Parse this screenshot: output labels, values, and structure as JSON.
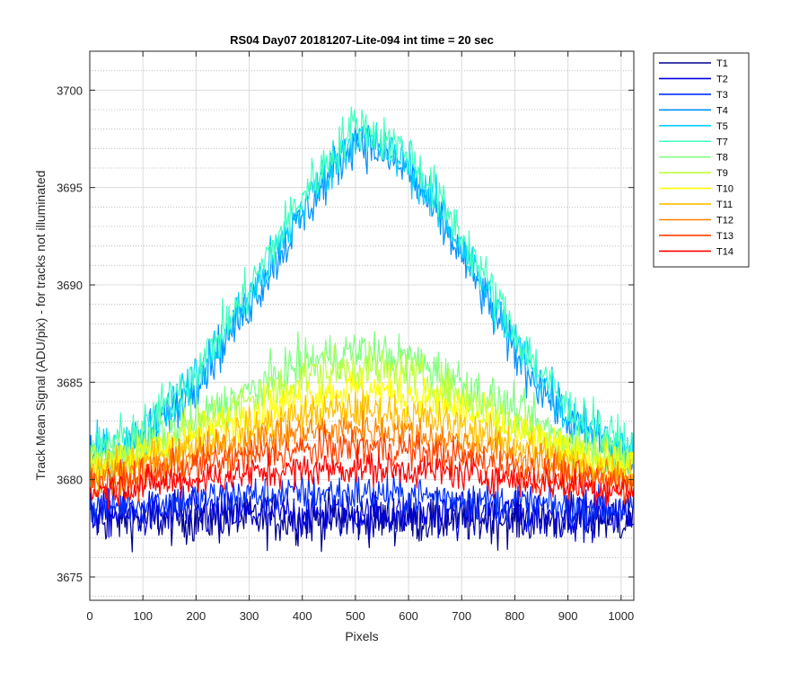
{
  "chart_data": {
    "type": "line",
    "title": "RS04 Day07 20181207-Lite-094 int time = 20 sec",
    "xlabel": "Pixels",
    "ylabel": "Track Mean Signal (ADU/pix) - for tracks not illuminated",
    "xlim": [
      0,
      1024
    ],
    "ylim": [
      3673.8,
      3702
    ],
    "xticks": [
      0,
      100,
      200,
      300,
      400,
      500,
      600,
      700,
      800,
      900,
      1000
    ],
    "yticks": [
      3675,
      3680,
      3685,
      3690,
      3695,
      3700
    ],
    "grid": true,
    "minor_grid": true,
    "legend_position": "outside-top-right",
    "x_sample": [
      0,
      100,
      200,
      300,
      400,
      500,
      600,
      700,
      800,
      900,
      1024
    ],
    "series": [
      {
        "name": "T1",
        "color": "#00008F",
        "values": [
          3678.0,
          3678.0,
          3678.0,
          3678.0,
          3678.0,
          3678.0,
          3678.0,
          3678.0,
          3678.0,
          3678.0,
          3678.0
        ]
      },
      {
        "name": "T2",
        "color": "#0000DF",
        "values": [
          3678.2,
          3678.2,
          3678.2,
          3678.2,
          3678.2,
          3678.2,
          3678.2,
          3678.2,
          3678.2,
          3678.2,
          3678.2
        ]
      },
      {
        "name": "T3",
        "color": "#0030FF",
        "values": [
          3678.6,
          3678.8,
          3679.0,
          3679.2,
          3679.3,
          3679.3,
          3679.2,
          3679.0,
          3678.8,
          3678.6,
          3678.5
        ]
      },
      {
        "name": "T4",
        "color": "#0090FF",
        "values": [
          3681.0,
          3682.0,
          3685.0,
          3689.0,
          3693.5,
          3697.6,
          3695.8,
          3691.5,
          3686.5,
          3683.0,
          3681.0
        ]
      },
      {
        "name": "T5",
        "color": "#00CFFF",
        "values": [
          3681.2,
          3682.2,
          3685.2,
          3689.3,
          3694.0,
          3697.8,
          3696.2,
          3692.0,
          3687.0,
          3683.3,
          3681.2
        ]
      },
      {
        "name": "T7",
        "color": "#40FFBF",
        "values": [
          3681.5,
          3682.5,
          3685.6,
          3689.8,
          3694.6,
          3698.3,
          3696.8,
          3692.6,
          3687.5,
          3683.6,
          3681.4
        ]
      },
      {
        "name": "T8",
        "color": "#80FF80",
        "values": [
          3681.0,
          3681.8,
          3683.0,
          3684.5,
          3686.0,
          3686.6,
          3686.2,
          3685.0,
          3683.5,
          3682.0,
          3681.0
        ]
      },
      {
        "name": "T9",
        "color": "#BFFF40",
        "values": [
          3680.8,
          3681.5,
          3682.6,
          3684.0,
          3685.3,
          3685.8,
          3685.4,
          3684.3,
          3683.0,
          3681.7,
          3680.8
        ]
      },
      {
        "name": "T10",
        "color": "#FFFF00",
        "values": [
          3680.6,
          3681.2,
          3682.2,
          3683.3,
          3684.3,
          3684.7,
          3684.4,
          3683.5,
          3682.4,
          3681.3,
          3680.6
        ]
      },
      {
        "name": "T11",
        "color": "#FFBF00",
        "values": [
          3680.3,
          3680.9,
          3681.7,
          3682.6,
          3683.3,
          3683.6,
          3683.3,
          3682.7,
          3681.8,
          3680.9,
          3680.3
        ]
      },
      {
        "name": "T12",
        "color": "#FF8000",
        "values": [
          3680.0,
          3680.5,
          3681.2,
          3681.9,
          3682.4,
          3682.6,
          3682.4,
          3681.9,
          3681.2,
          3680.5,
          3680.0
        ]
      },
      {
        "name": "T13",
        "color": "#FF4000",
        "values": [
          3679.7,
          3680.1,
          3680.7,
          3681.2,
          3681.5,
          3681.7,
          3681.5,
          3681.1,
          3680.6,
          3680.1,
          3679.7
        ]
      },
      {
        "name": "T14",
        "color": "#FF0000",
        "values": [
          3679.4,
          3679.7,
          3680.0,
          3680.3,
          3680.5,
          3680.6,
          3680.5,
          3680.3,
          3680.0,
          3679.7,
          3679.4
        ]
      }
    ],
    "noise_amplitude": [
      1.7,
      1.5,
      1.3,
      1.6,
      1.6,
      1.6,
      1.5,
      1.5,
      1.4,
      1.3,
      1.2,
      1.2,
      1.1
    ]
  }
}
